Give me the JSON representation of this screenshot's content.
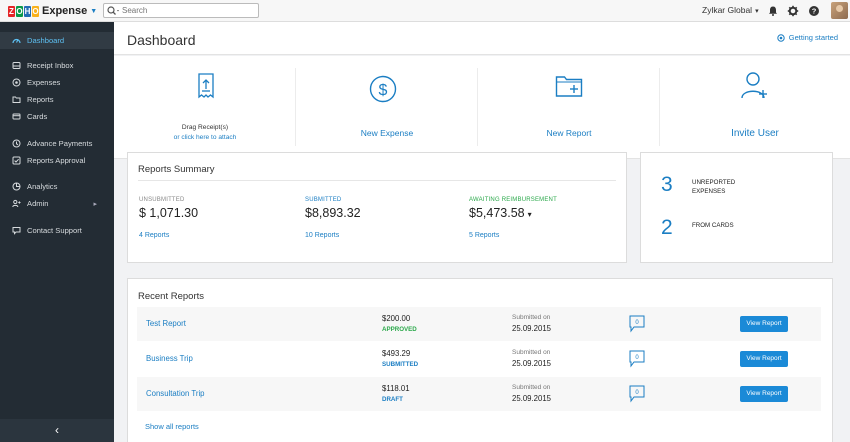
{
  "app": {
    "name": "Expense",
    "logo_letters": [
      "Z",
      "O",
      "H",
      "O"
    ],
    "logo_colors": [
      "#e42527",
      "#089949",
      "#226db4",
      "#f9b21d"
    ]
  },
  "search": {
    "placeholder": "Search"
  },
  "topbar": {
    "org_name": "Zylkar Global",
    "icons": [
      "bell-icon",
      "gear-icon",
      "help-icon"
    ]
  },
  "sidebar": {
    "items": [
      {
        "label": "Dashboard",
        "icon": "dashboard-icon",
        "active": true
      },
      {
        "label": "Receipt Inbox",
        "icon": "receipt-icon"
      },
      {
        "label": "Expenses",
        "icon": "expenses-icon"
      },
      {
        "label": "Reports",
        "icon": "folder-icon"
      },
      {
        "label": "Cards",
        "icon": "card-icon"
      },
      {
        "label": "Advance Payments",
        "icon": "advance-icon"
      },
      {
        "label": "Reports Approval",
        "icon": "approval-icon"
      },
      {
        "label": "Analytics",
        "icon": "pie-icon"
      },
      {
        "label": "Admin",
        "icon": "admin-icon",
        "has_submenu": true
      },
      {
        "label": "Contact Support",
        "icon": "chat-icon"
      }
    ],
    "collapse_glyph": "‹"
  },
  "header": {
    "title": "Dashboard",
    "getting_started": "Getting started"
  },
  "quick_actions": {
    "drag_line1": "Drag Receipt(s)",
    "drag_line2": "or click here to attach",
    "new_expense": "New Expense",
    "new_report": "New Report",
    "invite_user": "Invite User"
  },
  "reports_summary": {
    "title": "Reports Summary",
    "columns": [
      {
        "label": "UNSUBMITTED",
        "amount": "$ 1,071.30",
        "link": "4 Reports",
        "color": "#888888"
      },
      {
        "label": "SUBMITTED",
        "amount": "$8,893.32",
        "link": "10 Reports",
        "color": "#1b7ec3"
      },
      {
        "label": "AWAITING REIMBURSEMENT",
        "amount": "$5,473.58",
        "link": "5 Reports",
        "color": "#2aa84a"
      }
    ]
  },
  "unreported": {
    "count1": "3",
    "label1a": "UNREPORTED",
    "label1b": "EXPENSES",
    "count2": "2",
    "label2": "FROM CARDS"
  },
  "recent_reports": {
    "title": "Recent Reports",
    "rows": [
      {
        "name": "Test Report",
        "amount": "$200.00",
        "status": "APPROVED",
        "status_color": "#2aa84a",
        "submitted_label": "Submitted on",
        "date": "25.09.2015",
        "button": "View Report"
      },
      {
        "name": "Business Trip",
        "amount": "$493.29",
        "status": "SUBMITTED",
        "status_color": "#1b7ec3",
        "submitted_label": "Submitted on",
        "date": "25.09.2015",
        "button": "View Report"
      },
      {
        "name": "Consultation Trip",
        "amount": "$118.01",
        "status": "DRAFT",
        "status_color": "#1b7ec3",
        "submitted_label": "Submitted on",
        "date": "25.09.2015",
        "button": "View Report"
      }
    ],
    "show_all": "Show all reports"
  }
}
